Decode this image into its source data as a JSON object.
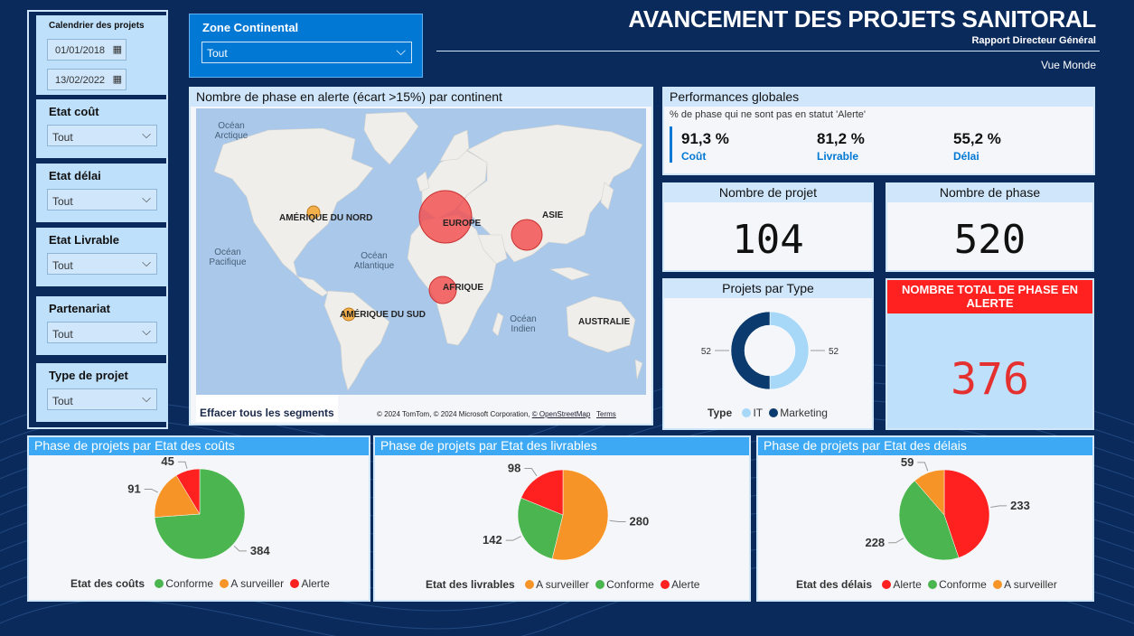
{
  "header": {
    "title": "AVANCEMENT DES PROJETS SANITORAL",
    "subtitle": "Rapport Directeur Général",
    "view": "Vue Monde"
  },
  "filters": {
    "calendar_label": "Calendrier des projets",
    "date_start": "01/01/2018",
    "date_end": "13/02/2022",
    "items": [
      {
        "label": "Etat coût",
        "value": "Tout"
      },
      {
        "label": "Etat délai",
        "value": "Tout"
      },
      {
        "label": "Etat Livrable",
        "value": "Tout"
      },
      {
        "label": "Partenariat",
        "value": "Tout"
      },
      {
        "label": "Type de projet",
        "value": "Tout"
      }
    ]
  },
  "zone": {
    "label": "Zone Continental",
    "value": "Tout"
  },
  "map": {
    "title": "Nombre de phase en alerte (écart >15%) par continent",
    "oceans": [
      "Océan Arctique",
      "Océan Pacifique",
      "Océan Atlantique",
      "Océan Indien"
    ],
    "continents": [
      "AMÉRIQUE DU NORD",
      "EUROPE",
      "ASIE",
      "AFRIQUE",
      "AMÉRIQUE DU SUD",
      "AUSTRALIE"
    ],
    "clear_button": "Effacer tous les segments",
    "copyright": "© 2024 TomTom, © 2024 Microsoft Corporation,",
    "osm_link": "© OpenStreetMap",
    "terms_link": "Terms"
  },
  "performance": {
    "title": "Performances globales",
    "subtitle": "% de phase qui ne sont pas en statut 'Alerte'",
    "kpis": [
      {
        "value": "91,3 %",
        "name": "Coût"
      },
      {
        "value": "81,2 %",
        "name": "Livrable"
      },
      {
        "value": "55,2 %",
        "name": "Délai"
      }
    ]
  },
  "cards": {
    "projects_title": "Nombre de projet",
    "projects_value": "104",
    "phases_title": "Nombre de phase",
    "phases_value": "520",
    "alert_title": "NOMBRE TOTAL DE PHASE EN ALERTE",
    "alert_value": "376"
  },
  "colors": {
    "conforme": "#4bb54f",
    "surveiller": "#f79428",
    "alerte": "#ff2020",
    "it": "#a8d8f8",
    "marketing": "#0b3a6e"
  },
  "chart_data": [
    {
      "type": "pie",
      "title": "Projets par Type",
      "donut": true,
      "legend_title": "Type",
      "categories": [
        "IT",
        "Marketing"
      ],
      "values": [
        52,
        52
      ]
    },
    {
      "type": "pie",
      "title": "Phase de projets par Etat des coûts",
      "legend_title": "Etat des coûts",
      "categories": [
        "Conforme",
        "A surveiller",
        "Alerte"
      ],
      "values": [
        384,
        91,
        45
      ]
    },
    {
      "type": "pie",
      "title": "Phase de projets par Etat des livrables",
      "legend_title": "Etat des livrables",
      "categories": [
        "A surveiller",
        "Conforme",
        "Alerte"
      ],
      "values": [
        280,
        142,
        98
      ]
    },
    {
      "type": "pie",
      "title": "Phase de projets par Etat des délais",
      "legend_title": "Etat des délais",
      "categories": [
        "Alerte",
        "Conforme",
        "A surveiller"
      ],
      "values": [
        233,
        228,
        59
      ]
    }
  ]
}
